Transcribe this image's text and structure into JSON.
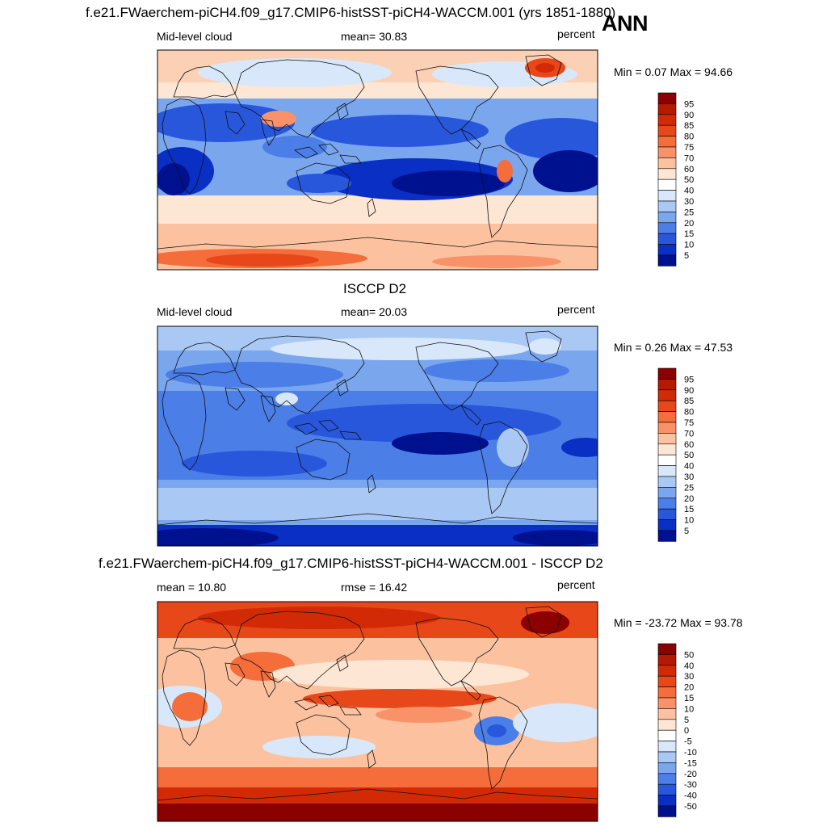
{
  "header": {
    "title": "f.e21.FWaerchem-piCH4.f09_g17.CMIP6-histSST-piCH4-WACCM.001 (yrs 1851-1880)",
    "season": "ANN"
  },
  "panels": [
    {
      "id": "model",
      "title": "",
      "left_label": "Mid-level cloud",
      "center_label": "mean=  30.83",
      "right_label": "percent",
      "minmax": "Min =   0.07 Max =  94.66",
      "colorbar_levels": [
        "95",
        "90",
        "85",
        "80",
        "75",
        "70",
        "60",
        "50",
        "40",
        "30",
        "25",
        "20",
        "15",
        "10",
        "5"
      ],
      "colorbar_colors": [
        "#8b0000",
        "#b31a00",
        "#d22a06",
        "#e8471a",
        "#f46d3a",
        "#f99269",
        "#fcc2a0",
        "#fde6d4",
        "#ffffff",
        "#d8e8fa",
        "#aac8f4",
        "#7aa6ee",
        "#4b7ee6",
        "#2857dc",
        "#0a2fc4",
        "#00118f"
      ]
    },
    {
      "id": "obs",
      "title": "ISCCP D2",
      "left_label": "Mid-level cloud",
      "center_label": "mean=  20.03",
      "right_label": "percent",
      "minmax": "Min =   0.26 Max =  47.53",
      "colorbar_levels": [
        "95",
        "90",
        "85",
        "80",
        "75",
        "70",
        "60",
        "50",
        "40",
        "30",
        "25",
        "20",
        "15",
        "10",
        "5"
      ],
      "colorbar_colors": [
        "#8b0000",
        "#b31a00",
        "#d22a06",
        "#e8471a",
        "#f46d3a",
        "#f99269",
        "#fcc2a0",
        "#fde6d4",
        "#ffffff",
        "#d8e8fa",
        "#aac8f4",
        "#7aa6ee",
        "#4b7ee6",
        "#2857dc",
        "#0a2fc4",
        "#00118f"
      ]
    },
    {
      "id": "diff",
      "title": "f.e21.FWaerchem-piCH4.f09_g17.CMIP6-histSST-piCH4-WACCM.001 - ISCCP D2",
      "left_label": "mean =  10.80",
      "center_label": "rmse =  16.42",
      "right_label": "percent",
      "minmax": "Min = -23.72 Max =  93.78",
      "colorbar_levels": [
        "50",
        "40",
        "30",
        "20",
        "15",
        "10",
        "5",
        "0",
        "-5",
        "-10",
        "-15",
        "-20",
        "-30",
        "-40",
        "-50"
      ],
      "colorbar_colors": [
        "#8b0000",
        "#b31a00",
        "#d22a06",
        "#e8471a",
        "#f46d3a",
        "#f99269",
        "#fcc2a0",
        "#fde6d4",
        "#ffffff",
        "#d8e8fa",
        "#aac8f4",
        "#7aa6ee",
        "#4b7ee6",
        "#2857dc",
        "#0a2fc4",
        "#00118f"
      ]
    }
  ]
}
